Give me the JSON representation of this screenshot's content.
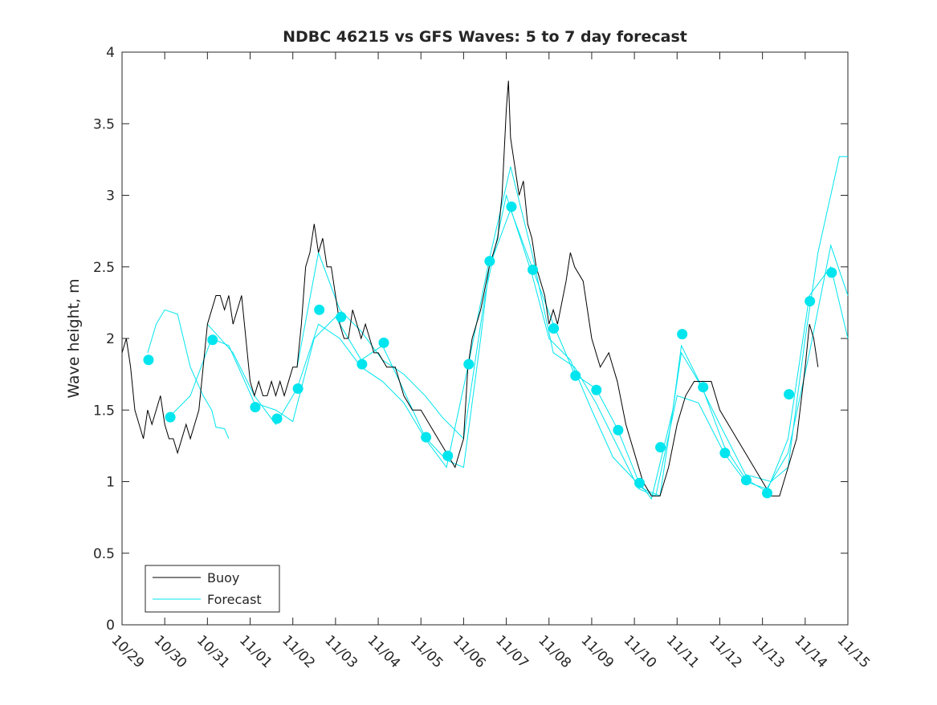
{
  "chart_data": {
    "type": "line",
    "title": "NDBC 46215 vs GFS Waves: 5 to 7 day forecast",
    "xlabel": "",
    "ylabel": "Wave height, m",
    "x_unit": "days since 10/29",
    "xlim": [
      0,
      17
    ],
    "ylim": [
      0,
      4
    ],
    "xticks": [
      "10/29",
      "10/30",
      "10/31",
      "11/01",
      "11/02",
      "11/03",
      "11/04",
      "11/05",
      "11/06",
      "11/07",
      "11/08",
      "11/09",
      "11/10",
      "11/11",
      "11/12",
      "11/13",
      "11/14",
      "11/15"
    ],
    "yticks": [
      "0",
      "0.5",
      "1",
      "1.5",
      "2",
      "2.5",
      "3",
      "3.5",
      "4"
    ],
    "legend": {
      "position": "bottom-left",
      "entries": [
        "Buoy",
        "Forecast"
      ]
    },
    "colors": {
      "buoy": "#000000",
      "forecast": "#00e5ee"
    },
    "buoy": [
      [
        0,
        1.9
      ],
      [
        0.1,
        2.0
      ],
      [
        0.2,
        1.8
      ],
      [
        0.3,
        1.5
      ],
      [
        0.4,
        1.4
      ],
      [
        0.5,
        1.3
      ],
      [
        0.6,
        1.5
      ],
      [
        0.7,
        1.4
      ],
      [
        0.8,
        1.5
      ],
      [
        0.9,
        1.6
      ],
      [
        1.0,
        1.4
      ],
      [
        1.1,
        1.3
      ],
      [
        1.2,
        1.3
      ],
      [
        1.3,
        1.2
      ],
      [
        1.4,
        1.3
      ],
      [
        1.5,
        1.4
      ],
      [
        1.6,
        1.3
      ],
      [
        1.7,
        1.4
      ],
      [
        1.8,
        1.5
      ],
      [
        1.9,
        1.8
      ],
      [
        2.0,
        2.1
      ],
      [
        2.1,
        2.2
      ],
      [
        2.2,
        2.3
      ],
      [
        2.3,
        2.3
      ],
      [
        2.4,
        2.2
      ],
      [
        2.5,
        2.3
      ],
      [
        2.6,
        2.1
      ],
      [
        2.7,
        2.2
      ],
      [
        2.8,
        2.3
      ],
      [
        2.9,
        2.0
      ],
      [
        3.0,
        1.7
      ],
      [
        3.1,
        1.6
      ],
      [
        3.2,
        1.7
      ],
      [
        3.3,
        1.6
      ],
      [
        3.4,
        1.6
      ],
      [
        3.5,
        1.7
      ],
      [
        3.6,
        1.6
      ],
      [
        3.7,
        1.7
      ],
      [
        3.8,
        1.6
      ],
      [
        3.9,
        1.7
      ],
      [
        4.0,
        1.8
      ],
      [
        4.1,
        1.8
      ],
      [
        4.2,
        2.1
      ],
      [
        4.3,
        2.5
      ],
      [
        4.4,
        2.6
      ],
      [
        4.5,
        2.8
      ],
      [
        4.6,
        2.6
      ],
      [
        4.7,
        2.7
      ],
      [
        4.8,
        2.5
      ],
      [
        4.9,
        2.5
      ],
      [
        5.0,
        2.3
      ],
      [
        5.1,
        2.1
      ],
      [
        5.2,
        2.0
      ],
      [
        5.3,
        2.0
      ],
      [
        5.4,
        2.2
      ],
      [
        5.5,
        2.1
      ],
      [
        5.6,
        2.0
      ],
      [
        5.7,
        2.1
      ],
      [
        5.8,
        2.0
      ],
      [
        5.9,
        1.9
      ],
      [
        6.0,
        1.9
      ],
      [
        6.2,
        1.8
      ],
      [
        6.4,
        1.8
      ],
      [
        6.6,
        1.6
      ],
      [
        6.8,
        1.5
      ],
      [
        7.0,
        1.5
      ],
      [
        7.2,
        1.4
      ],
      [
        7.4,
        1.3
      ],
      [
        7.6,
        1.2
      ],
      [
        7.8,
        1.1
      ],
      [
        8.0,
        1.3
      ],
      [
        8.1,
        1.8
      ],
      [
        8.2,
        2.0
      ],
      [
        8.4,
        2.2
      ],
      [
        8.6,
        2.5
      ],
      [
        8.8,
        2.7
      ],
      [
        8.9,
        3.0
      ],
      [
        9.0,
        3.6
      ],
      [
        9.05,
        3.8
      ],
      [
        9.1,
        3.4
      ],
      [
        9.2,
        3.2
      ],
      [
        9.3,
        3.0
      ],
      [
        9.4,
        3.1
      ],
      [
        9.5,
        2.8
      ],
      [
        9.6,
        2.7
      ],
      [
        9.7,
        2.5
      ],
      [
        9.8,
        2.4
      ],
      [
        9.9,
        2.3
      ],
      [
        10.0,
        2.1
      ],
      [
        10.1,
        2.2
      ],
      [
        10.2,
        2.1
      ],
      [
        10.4,
        2.4
      ],
      [
        10.5,
        2.6
      ],
      [
        10.6,
        2.5
      ],
      [
        10.8,
        2.4
      ],
      [
        11.0,
        2.0
      ],
      [
        11.2,
        1.8
      ],
      [
        11.4,
        1.9
      ],
      [
        11.6,
        1.7
      ],
      [
        11.8,
        1.4
      ],
      [
        12.0,
        1.2
      ],
      [
        12.2,
        1.0
      ],
      [
        12.4,
        0.9
      ],
      [
        12.6,
        0.9
      ],
      [
        12.8,
        1.1
      ],
      [
        13.0,
        1.4
      ],
      [
        13.2,
        1.6
      ],
      [
        13.4,
        1.7
      ],
      [
        13.6,
        1.7
      ],
      [
        13.8,
        1.7
      ],
      [
        14.0,
        1.5
      ],
      [
        14.2,
        1.4
      ],
      [
        14.4,
        1.3
      ],
      [
        14.6,
        1.2
      ],
      [
        14.8,
        1.1
      ],
      [
        15.0,
        1.0
      ],
      [
        15.2,
        0.9
      ],
      [
        15.4,
        0.9
      ],
      [
        15.6,
        1.1
      ],
      [
        15.8,
        1.3
      ],
      [
        16.0,
        1.8
      ],
      [
        16.1,
        2.1
      ],
      [
        16.2,
        2.0
      ],
      [
        16.3,
        1.8
      ]
    ],
    "forecast_lines": [
      [
        [
          0.6,
          1.9
        ],
        [
          0.8,
          2.1
        ],
        [
          1.0,
          2.2
        ],
        [
          1.3,
          2.17
        ],
        [
          1.6,
          1.8
        ],
        [
          1.9,
          1.6
        ],
        [
          2.1,
          1.5
        ],
        [
          2.2,
          1.38
        ],
        [
          2.4,
          1.37
        ],
        [
          2.5,
          1.3
        ]
      ],
      [
        [
          1.1,
          1.45
        ],
        [
          1.6,
          1.6
        ],
        [
          2.1,
          2.0
        ],
        [
          2.5,
          1.95
        ],
        [
          3.1,
          1.55
        ],
        [
          3.6,
          1.5
        ],
        [
          4.0,
          1.42
        ],
        [
          4.5,
          2.0
        ],
        [
          5.0,
          2.15
        ],
        [
          5.6,
          1.85
        ],
        [
          6.1,
          1.95
        ],
        [
          6.5,
          1.7
        ],
        [
          7.1,
          1.31
        ],
        [
          7.6,
          1.15
        ],
        [
          8.0,
          1.1
        ],
        [
          8.4,
          2.0
        ],
        [
          8.6,
          2.5
        ],
        [
          9.1,
          2.9
        ],
        [
          9.6,
          2.5
        ],
        [
          10.1,
          2.1
        ],
        [
          10.6,
          1.75
        ],
        [
          11.1,
          1.65
        ],
        [
          11.6,
          1.37
        ],
        [
          12.1,
          1.0
        ],
        [
          12.4,
          0.88
        ],
        [
          12.9,
          1.5
        ],
        [
          13.1,
          1.95
        ],
        [
          13.6,
          1.65
        ],
        [
          14.1,
          1.25
        ],
        [
          14.6,
          1.02
        ],
        [
          15.1,
          0.93
        ],
        [
          15.6,
          1.3
        ],
        [
          16.1,
          2.3
        ],
        [
          16.6,
          2.5
        ],
        [
          17,
          2.0
        ]
      ],
      [
        [
          2.0,
          2.1
        ],
        [
          2.6,
          1.9
        ],
        [
          3.1,
          1.6
        ],
        [
          3.6,
          1.4
        ],
        [
          4.1,
          1.65
        ],
        [
          4.6,
          2.1
        ],
        [
          5.1,
          2.0
        ],
        [
          5.6,
          1.8
        ],
        [
          6.1,
          1.7
        ],
        [
          6.6,
          1.55
        ],
        [
          7.1,
          1.3
        ],
        [
          7.6,
          1.1
        ],
        [
          8.1,
          1.8
        ],
        [
          8.6,
          2.55
        ],
        [
          9.1,
          3.2
        ],
        [
          9.6,
          2.6
        ],
        [
          10.1,
          1.9
        ],
        [
          10.6,
          1.8
        ],
        [
          11.1,
          1.55
        ],
        [
          11.6,
          1.25
        ],
        [
          12.1,
          0.95
        ],
        [
          12.5,
          0.9
        ],
        [
          13.0,
          1.6
        ],
        [
          13.5,
          1.55
        ],
        [
          14.1,
          1.2
        ],
        [
          14.6,
          1.0
        ],
        [
          15.1,
          0.95
        ],
        [
          15.6,
          1.2
        ],
        [
          16.1,
          1.9
        ],
        [
          16.6,
          2.65
        ],
        [
          17,
          2.3
        ]
      ],
      [
        [
          4.1,
          1.8
        ],
        [
          4.6,
          2.6
        ],
        [
          5.1,
          2.2
        ],
        [
          5.6,
          2.05
        ],
        [
          6.1,
          1.85
        ],
        [
          6.6,
          1.75
        ],
        [
          7.1,
          1.6
        ],
        [
          7.5,
          1.45
        ],
        [
          8.0,
          1.3
        ],
        [
          8.5,
          2.3
        ],
        [
          9.0,
          3.0
        ],
        [
          9.6,
          2.45
        ],
        [
          10.0,
          2.0
        ],
        [
          10.5,
          1.85
        ],
        [
          11.0,
          1.5
        ],
        [
          11.5,
          1.17
        ],
        [
          12.2,
          0.95
        ],
        [
          12.6,
          0.9
        ],
        [
          13.1,
          1.9
        ],
        [
          13.5,
          1.7
        ],
        [
          14.0,
          1.4
        ],
        [
          14.6,
          1.05
        ],
        [
          15.2,
          1.0
        ],
        [
          15.6,
          1.1
        ],
        [
          16.0,
          2.0
        ],
        [
          16.3,
          2.6
        ],
        [
          16.8,
          3.27
        ],
        [
          17,
          3.27
        ]
      ]
    ],
    "forecast_markers": [
      [
        0.62,
        1.85
      ],
      [
        1.13,
        1.45
      ],
      [
        2.12,
        1.99
      ],
      [
        3.12,
        1.52
      ],
      [
        3.63,
        1.44
      ],
      [
        4.12,
        1.65
      ],
      [
        4.62,
        2.2
      ],
      [
        5.13,
        2.15
      ],
      [
        5.62,
        1.82
      ],
      [
        6.13,
        1.97
      ],
      [
        7.12,
        1.31
      ],
      [
        7.63,
        1.18
      ],
      [
        8.12,
        1.82
      ],
      [
        8.61,
        2.54
      ],
      [
        9.12,
        2.92
      ],
      [
        9.62,
        2.48
      ],
      [
        10.11,
        2.07
      ],
      [
        10.62,
        1.74
      ],
      [
        11.11,
        1.64
      ],
      [
        11.62,
        1.36
      ],
      [
        12.12,
        0.99
      ],
      [
        12.61,
        1.24
      ],
      [
        13.12,
        2.03
      ],
      [
        13.61,
        1.66
      ],
      [
        14.12,
        1.2
      ],
      [
        14.62,
        1.01
      ],
      [
        15.11,
        0.92
      ],
      [
        15.62,
        1.61
      ],
      [
        16.11,
        2.26
      ],
      [
        16.62,
        2.46
      ]
    ]
  }
}
